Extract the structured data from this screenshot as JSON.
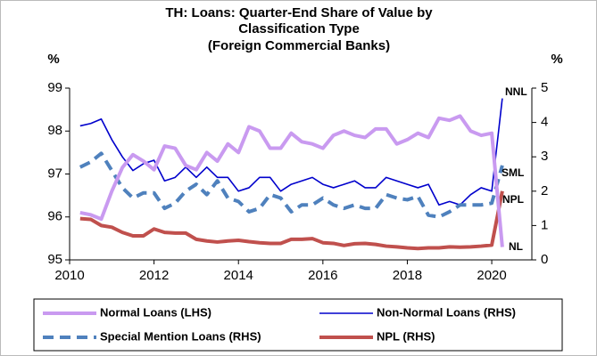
{
  "chart_data": {
    "type": "line",
    "title": [
      "TH: Loans: Quarter-End Share of Value by",
      "Classification Type",
      "(Foreign Commercial Banks)"
    ],
    "y_label": "%",
    "y2_label": "%",
    "x": [
      2010.25,
      2010.5,
      2010.75,
      2011,
      2011.25,
      2011.5,
      2011.75,
      2012,
      2012.25,
      2012.5,
      2012.75,
      2013,
      2013.25,
      2013.5,
      2013.75,
      2014,
      2014.25,
      2014.5,
      2014.75,
      2015,
      2015.25,
      2015.5,
      2015.75,
      2016,
      2016.25,
      2016.5,
      2016.75,
      2017,
      2017.25,
      2017.5,
      2017.75,
      2018,
      2018.25,
      2018.5,
      2018.75,
      2019,
      2019.25,
      2019.5,
      2019.75,
      2020,
      2020.25
    ],
    "xlim": [
      2010,
      2020.95
    ],
    "xticks": [
      2010,
      2012,
      2014,
      2016,
      2018,
      2020
    ],
    "ylim": [
      95,
      99
    ],
    "yticks": [
      95,
      96,
      97,
      98,
      99
    ],
    "y2lim": [
      0,
      5
    ],
    "y2ticks": [
      0,
      1,
      2,
      3,
      4,
      5
    ],
    "series": [
      {
        "name": "Normal Loans (LHS)",
        "color": "#c99af0",
        "width": 4,
        "dash": false,
        "values": [
          96.1,
          96.05,
          95.95,
          96.6,
          97.15,
          97.45,
          97.3,
          97.1,
          97.65,
          97.6,
          97.2,
          97.1,
          97.5,
          97.3,
          97.7,
          97.5,
          98.1,
          98.0,
          97.6,
          97.6,
          97.95,
          97.75,
          97.7,
          97.6,
          97.9,
          98.0,
          97.9,
          97.85,
          98.05,
          98.05,
          97.7,
          97.8,
          97.95,
          97.85,
          98.3,
          98.25,
          98.35,
          98.0,
          97.9,
          97.95,
          95.3
        ]
      },
      {
        "name": "Non-Normal Loans (RHS)",
        "color": "#0000cc",
        "width": 1.6,
        "dash": false,
        "axis": "y2",
        "values": [
          3.9,
          3.97,
          4.1,
          3.5,
          3.0,
          2.6,
          2.8,
          2.9,
          2.3,
          2.4,
          2.7,
          2.4,
          2.7,
          2.4,
          2.4,
          2.0,
          2.1,
          2.4,
          2.4,
          2.0,
          2.2,
          2.3,
          2.4,
          2.2,
          2.1,
          2.2,
          2.3,
          2.1,
          2.1,
          2.4,
          2.3,
          2.2,
          2.1,
          2.2,
          1.6,
          1.7,
          1.6,
          1.9,
          2.1,
          2.0,
          4.7
        ]
      },
      {
        "name": "Special Mention Loans (RHS)",
        "color": "#4f81bd",
        "width": 4,
        "dash": true,
        "axis": "y2",
        "values": [
          2.7,
          2.85,
          3.1,
          2.6,
          2.1,
          1.8,
          1.95,
          1.95,
          1.5,
          1.65,
          2.0,
          2.2,
          1.9,
          2.3,
          1.8,
          1.7,
          1.4,
          1.5,
          1.9,
          1.8,
          1.4,
          1.6,
          1.6,
          1.8,
          1.6,
          1.5,
          1.6,
          1.5,
          1.5,
          1.9,
          1.8,
          1.75,
          1.85,
          1.3,
          1.25,
          1.4,
          1.6,
          1.6,
          1.6,
          1.65,
          2.75
        ]
      },
      {
        "name": "NPL (RHS)",
        "color": "#c0504d",
        "width": 4,
        "dash": false,
        "axis": "y2",
        "values": [
          1.2,
          1.18,
          1.0,
          0.95,
          0.8,
          0.7,
          0.7,
          0.9,
          0.8,
          0.78,
          0.78,
          0.6,
          0.55,
          0.52,
          0.55,
          0.57,
          0.53,
          0.5,
          0.48,
          0.48,
          0.6,
          0.6,
          0.62,
          0.5,
          0.48,
          0.42,
          0.47,
          0.48,
          0.45,
          0.4,
          0.38,
          0.35,
          0.33,
          0.35,
          0.35,
          0.38,
          0.37,
          0.38,
          0.4,
          0.43,
          2.0
        ]
      }
    ],
    "annotations": [
      {
        "text": "NNL",
        "color": "#0000cc"
      },
      {
        "text": "SML",
        "color": "#4f81bd"
      },
      {
        "text": "NPL",
        "color": "#c0504d"
      },
      {
        "text": "NL",
        "color": "#c99af0"
      }
    ]
  }
}
